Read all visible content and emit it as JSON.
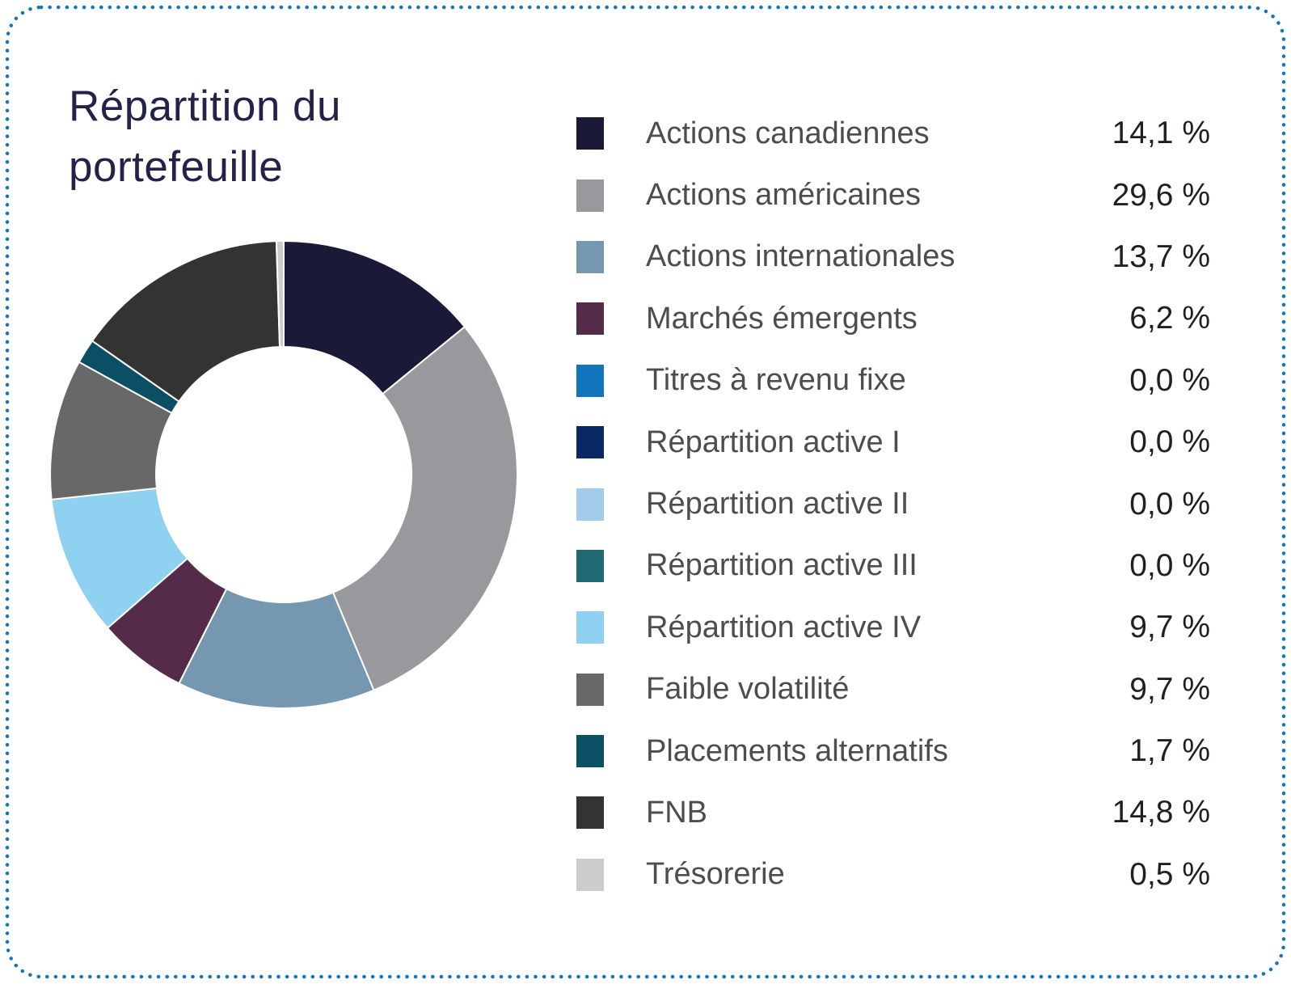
{
  "title": "Répartition du portefeuille",
  "chart_data": {
    "type": "pie",
    "donut": true,
    "title": "Répartition du portefeuille",
    "start_angle_deg": 0,
    "direction": "clockwise",
    "inner_radius_ratio": 0.545,
    "legend_position": "right",
    "total": 100.0,
    "series": [
      {
        "label": "Actions canadiennes",
        "value": 14.1,
        "display": "14,1 %",
        "color": "#1a1a38"
      },
      {
        "label": "Actions américaines",
        "value": 29.6,
        "display": "29,6 %",
        "color": "#97999c"
      },
      {
        "label": "Actions internationales",
        "value": 13.7,
        "display": "13,7 %",
        "color": "#7597b0"
      },
      {
        "label": "Marchés émergents",
        "value": 6.2,
        "display": "6,2 %",
        "color": "#542c49"
      },
      {
        "label": "Titres à revenu fixe",
        "value": 0.0,
        "display": "0,0 %",
        "color": "#1176be"
      },
      {
        "label": "Répartition active I",
        "value": 0.0,
        "display": "0,0 %",
        "color": "#0a2864"
      },
      {
        "label": "Répartition active II",
        "value": 0.0,
        "display": "0,0 %",
        "color": "#a2cbec"
      },
      {
        "label": "Répartition active III",
        "value": 0.0,
        "display": "0,0 %",
        "color": "#206b73"
      },
      {
        "label": "Répartition active IV",
        "value": 9.7,
        "display": "9,7 %",
        "color": "#8fd1f0"
      },
      {
        "label": "Faible volatilité",
        "value": 9.7,
        "display": "9,7 %",
        "color": "#686868"
      },
      {
        "label": "Placements alternatifs",
        "value": 1.7,
        "display": "1,7 %",
        "color": "#0a4f63"
      },
      {
        "label": "FNB",
        "value": 14.8,
        "display": "14,8 %",
        "color": "#333333"
      },
      {
        "label": "Trésorerie",
        "value": 0.5,
        "display": "0,5 %",
        "color": "#cccccc"
      }
    ]
  },
  "colors": {
    "card_border": "#1576bc",
    "title_text": "#23234a",
    "legend_label": "#4d4d4d",
    "legend_value": "#231f20",
    "background": "#ffffff",
    "slice_gap": "#ffffff"
  }
}
